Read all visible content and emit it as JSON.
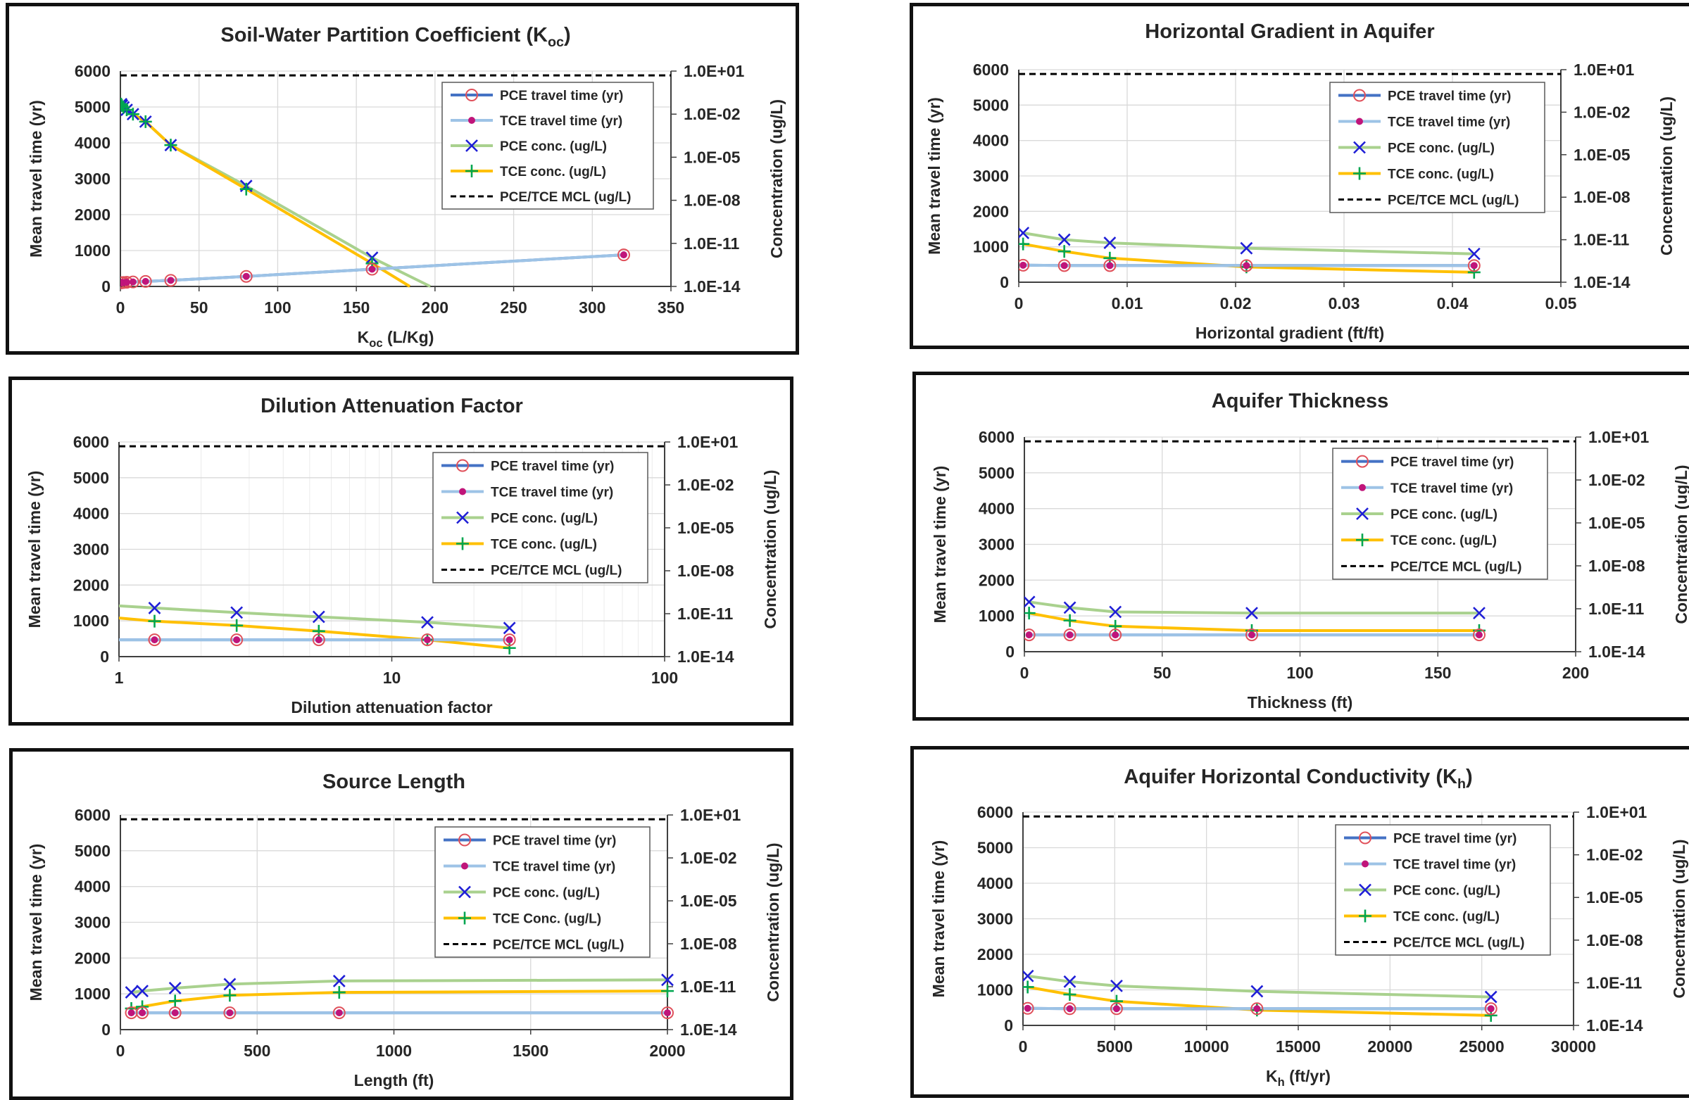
{
  "legend_styles": [
    {
      "color": "#4472C4",
      "marker": "circle-open",
      "marker_color": "#E0505A"
    },
    {
      "color": "#9DC3E6",
      "marker": "dot",
      "marker_color": "#C0157A"
    },
    {
      "color": "#A9D18E",
      "marker": "x",
      "marker_color": "#1F1FD6"
    },
    {
      "color": "#FFC000",
      "marker": "plus",
      "marker_color": "#00A650"
    },
    {
      "color": "#000000",
      "marker": "dash"
    }
  ],
  "chart_data": [
    {
      "type": "line",
      "title": "Soil-Water Partition Coefficient (K",
      "title_sub": "oc",
      "title_tail": ")",
      "xlabel": "K",
      "xlabel_sub": "oc",
      "xlabel_tail": " (L/Kg)",
      "ylabel": "Mean travel time (yr)",
      "y2label": "Concentration (ug/L)",
      "xscale": "linear",
      "xlim": [
        0,
        350
      ],
      "xticks": [
        0,
        50,
        100,
        150,
        200,
        250,
        300,
        350
      ],
      "ylim": [
        0,
        6000
      ],
      "yticks": [
        0,
        1000,
        2000,
        3000,
        4000,
        5000,
        6000
      ],
      "y2scale": "log",
      "y2lim": [
        1e-14,
        10
      ],
      "y2ticks": [
        "1.0E-14",
        "1.0E-11",
        "1.0E-08",
        "1.0E-05",
        "1.0E-02",
        "1.0E+01"
      ],
      "legend_position": "top-right",
      "legend": [
        "PCE travel time (yr)",
        "TCE travel time (yr)",
        "PCE conc. (ug/L)",
        "TCE conc. (ug/L)",
        "PCE/TCE MCL (ug/L)"
      ],
      "series": [
        {
          "name": "PCE travel time (yr)",
          "axis": "left",
          "x": [
            0.5,
            1,
            2,
            4,
            8,
            16,
            32,
            80,
            160,
            320
          ],
          "y": [
            100,
            105,
            110,
            115,
            125,
            140,
            170,
            280,
            480,
            880
          ]
        },
        {
          "name": "TCE travel time (yr)",
          "axis": "left",
          "x": [
            0.5,
            1,
            2,
            4,
            8,
            16,
            32,
            80,
            160,
            320
          ],
          "y": [
            100,
            105,
            110,
            115,
            125,
            140,
            170,
            280,
            480,
            880
          ]
        },
        {
          "name": "PCE conc. (ug/L)",
          "axis": "right",
          "x": [
            0.5,
            1,
            2,
            4,
            8,
            16,
            32,
            80,
            160,
            197
          ],
          "y": [
            0.05,
            0.04,
            0.03,
            0.02,
            0.01,
            0.003,
            7e-05,
            1e-07,
            1e-12,
            1e-14
          ]
        },
        {
          "name": "TCE conc. (ug/L)",
          "axis": "right",
          "x": [
            0.5,
            1,
            2,
            4,
            8,
            16,
            32,
            80,
            160,
            184
          ],
          "y": [
            0.05,
            0.04,
            0.03,
            0.02,
            0.01,
            0.003,
            7e-05,
            6e-08,
            4e-13,
            1e-14
          ]
        },
        {
          "name": "PCE/TCE MCL (ug/L)",
          "axis": "right",
          "x": [
            0,
            350
          ],
          "y": [
            5,
            5
          ]
        }
      ]
    },
    {
      "type": "line",
      "title": "Horizontal Gradient in Aquifer",
      "title_sub": "",
      "title_tail": "",
      "xlabel": "Horizontal gradient (ft/ft)",
      "xlabel_sub": "",
      "xlabel_tail": "",
      "ylabel": "Mean travel time (yr)",
      "y2label": "Concentration (ug/L)",
      "xscale": "linear",
      "xlim": [
        0,
        0.05
      ],
      "xticks": [
        0,
        0.01,
        0.02,
        0.03,
        0.04,
        0.05
      ],
      "ylim": [
        0,
        6000
      ],
      "yticks": [
        0,
        1000,
        2000,
        3000,
        4000,
        5000,
        6000
      ],
      "y2scale": "log",
      "y2lim": [
        1e-14,
        10
      ],
      "y2ticks": [
        "1.0E-14",
        "1.0E-11",
        "1.0E-08",
        "1.0E-05",
        "1.0E-02",
        "1.0E+01"
      ],
      "legend_position": "top-right",
      "legend": [
        "PCE travel time (yr)",
        "TCE travel time (yr)",
        "PCE conc. (ug/L)",
        "TCE conc. (ug/L)",
        "PCE/TCE MCL (ug/L)"
      ],
      "series": [
        {
          "name": "PCE travel time (yr)",
          "axis": "left",
          "x": [
            0.0004,
            0.0042,
            0.0084,
            0.021,
            0.042
          ],
          "y": [
            480,
            470,
            470,
            470,
            470
          ]
        },
        {
          "name": "TCE travel time (yr)",
          "axis": "left",
          "x": [
            0.0004,
            0.0042,
            0.0084,
            0.021,
            0.042
          ],
          "y": [
            480,
            470,
            470,
            470,
            470
          ]
        },
        {
          "name": "PCE conc. (ug/L)",
          "axis": "right",
          "x": [
            0.0004,
            0.0042,
            0.0084,
            0.021,
            0.042
          ],
          "y": [
            3e-11,
            1e-11,
            6e-12,
            2.5e-12,
            1e-12
          ]
        },
        {
          "name": "TCE conc. (ug/L)",
          "axis": "right",
          "x": [
            0.0004,
            0.0042,
            0.0084,
            0.021,
            0.042
          ],
          "y": [
            5e-12,
            1.5e-12,
            5e-13,
            1.2e-13,
            5e-14
          ]
        },
        {
          "name": "PCE/TCE MCL (ug/L)",
          "axis": "right",
          "x": [
            0,
            0.05
          ],
          "y": [
            5,
            5
          ]
        }
      ]
    },
    {
      "type": "line",
      "title": "Dilution Attenuation Factor",
      "title_sub": "",
      "title_tail": "",
      "xlabel": "Dilution attenuation factor",
      "xlabel_sub": "",
      "xlabel_tail": "",
      "ylabel": "Mean travel time (yr)",
      "y2label": "Concentration (ug/L)",
      "xscale": "log",
      "xlim": [
        1,
        100
      ],
      "xticks": [
        1,
        10,
        100
      ],
      "ylim": [
        0,
        6000
      ],
      "yticks": [
        0,
        1000,
        2000,
        3000,
        4000,
        5000,
        6000
      ],
      "y2scale": "log",
      "y2lim": [
        1e-14,
        10
      ],
      "y2ticks": [
        "1.0E-14",
        "1.0E-11",
        "1.0E-08",
        "1.0E-05",
        "1.0E-02",
        "1.0E+01"
      ],
      "legend_position": "top-right",
      "legend": [
        "PCE travel time (yr)",
        "TCE travel time (yr)",
        "PCE conc. (ug/L)",
        "TCE conc. (ug/L)",
        "PCE/TCE MCL (ug/L)"
      ],
      "series": [
        {
          "name": "PCE travel time (yr)",
          "axis": "left",
          "x": [
            1,
            1.35,
            2.7,
            5.4,
            13.5,
            27
          ],
          "y": [
            470,
            470,
            470,
            470,
            470,
            470
          ]
        },
        {
          "name": "TCE travel time (yr)",
          "axis": "left",
          "x": [
            1,
            1.35,
            2.7,
            5.4,
            13.5,
            27
          ],
          "y": [
            470,
            470,
            470,
            470,
            470,
            470
          ]
        },
        {
          "name": "PCE conc. (ug/L)",
          "axis": "right",
          "x": [
            1,
            1.35,
            2.7,
            5.4,
            13.5,
            27
          ],
          "y": [
            3.5e-11,
            2.5e-11,
            1.2e-11,
            6e-12,
            2.5e-12,
            1e-12
          ]
        },
        {
          "name": "TCE conc. (ug/L)",
          "axis": "right",
          "x": [
            1,
            1.35,
            2.7,
            5.4,
            13.5,
            27
          ],
          "y": [
            5e-12,
            3e-12,
            1.5e-12,
            6e-13,
            1.5e-13,
            4e-14
          ]
        },
        {
          "name": "PCE/TCE MCL (ug/L)",
          "axis": "right",
          "x": [
            1,
            100
          ],
          "y": [
            5,
            5
          ]
        }
      ]
    },
    {
      "type": "line",
      "title": "Aquifer Thickness",
      "title_sub": "",
      "title_tail": "",
      "xlabel": "Thickness (ft)",
      "xlabel_sub": "",
      "xlabel_tail": "",
      "ylabel": "Mean travel time (yr)",
      "y2label": "Concentration (ug/L)",
      "xscale": "linear",
      "xlim": [
        0,
        200
      ],
      "xticks": [
        0,
        50,
        100,
        150,
        200
      ],
      "ylim": [
        0,
        6000
      ],
      "yticks": [
        0,
        1000,
        2000,
        3000,
        4000,
        5000,
        6000
      ],
      "y2scale": "log",
      "y2lim": [
        1e-14,
        10
      ],
      "y2ticks": [
        "1.0E-14",
        "1.0E-11",
        "1.0E-08",
        "1.0E-05",
        "1.0E-02",
        "1.0E+01"
      ],
      "legend_position": "top-right",
      "legend": [
        "PCE travel time (yr)",
        "TCE travel time (yr)",
        "PCE conc. (ug/L)",
        "TCE conc. (ug/L)",
        "PCE/TCE MCL (ug/L)"
      ],
      "series": [
        {
          "name": "PCE travel time (yr)",
          "axis": "left",
          "x": [
            1.7,
            16.5,
            33,
            82.5,
            165
          ],
          "y": [
            470,
            470,
            470,
            470,
            470
          ]
        },
        {
          "name": "TCE travel time (yr)",
          "axis": "left",
          "x": [
            1.7,
            16.5,
            33,
            82.5,
            165
          ],
          "y": [
            470,
            470,
            470,
            470,
            470
          ]
        },
        {
          "name": "PCE conc. (ug/L)",
          "axis": "right",
          "x": [
            1.7,
            16.5,
            33,
            82.5,
            165
          ],
          "y": [
            3e-11,
            1.2e-11,
            6e-12,
            5e-12,
            5e-12
          ]
        },
        {
          "name": "TCE conc. (ug/L)",
          "axis": "right",
          "x": [
            1.7,
            16.5,
            33,
            82.5,
            165
          ],
          "y": [
            5e-12,
            1.5e-12,
            6e-13,
            3e-13,
            3e-13
          ]
        },
        {
          "name": "PCE/TCE MCL (ug/L)",
          "axis": "right",
          "x": [
            0,
            200
          ],
          "y": [
            5,
            5
          ]
        }
      ]
    },
    {
      "type": "line",
      "title": "Source Length",
      "title_sub": "",
      "title_tail": "",
      "xlabel": "Length (ft)",
      "xlabel_sub": "",
      "xlabel_tail": "",
      "ylabel": "Mean travel time (yr)",
      "y2label": "Concentration (ug/L)",
      "xscale": "linear",
      "xlim": [
        0,
        2000
      ],
      "xticks": [
        0,
        500,
        1000,
        1500,
        2000
      ],
      "ylim": [
        0,
        6000
      ],
      "yticks": [
        0,
        1000,
        2000,
        3000,
        4000,
        5000,
        6000
      ],
      "y2scale": "log",
      "y2lim": [
        1e-14,
        10
      ],
      "y2ticks": [
        "1.0E-14",
        "1.0E-11",
        "1.0E-08",
        "1.0E-05",
        "1.0E-02",
        "1.0E+01"
      ],
      "legend_position": "top-right",
      "legend": [
        "PCE travel time (yr)",
        "TCE travel time (yr)",
        "PCE conc. (ug/L)",
        "TCE Conc. (ug/L)",
        "PCE/TCE MCL (ug/L)"
      ],
      "series": [
        {
          "name": "PCE travel time (yr)",
          "axis": "left",
          "x": [
            40,
            80,
            200,
            400,
            800,
            2000
          ],
          "y": [
            470,
            470,
            470,
            470,
            470,
            470
          ]
        },
        {
          "name": "TCE travel time (yr)",
          "axis": "left",
          "x": [
            40,
            80,
            200,
            400,
            800,
            2000
          ],
          "y": [
            470,
            470,
            470,
            470,
            470,
            470
          ]
        },
        {
          "name": "PCE conc. (ug/L)",
          "axis": "right",
          "x": [
            40,
            80,
            200,
            400,
            800,
            2000
          ],
          "y": [
            4e-12,
            5e-12,
            8e-12,
            1.5e-11,
            2.5e-11,
            3e-11
          ]
        },
        {
          "name": "TCE Conc. (ug/L)",
          "axis": "right",
          "x": [
            40,
            80,
            200,
            400,
            800,
            2000
          ],
          "y": [
            3e-13,
            4e-13,
            1e-12,
            2.5e-12,
            4e-12,
            5e-12
          ]
        },
        {
          "name": "PCE/TCE MCL (ug/L)",
          "axis": "right",
          "x": [
            0,
            2000
          ],
          "y": [
            5,
            5
          ]
        }
      ]
    },
    {
      "type": "line",
      "title": "Aquifer Horizontal Conductivity (K",
      "title_sub": "h",
      "title_tail": ")",
      "xlabel": "K",
      "xlabel_sub": "h",
      "xlabel_tail": " (ft/yr)",
      "ylabel": "Mean travel time (yr)",
      "y2label": "Concentration (ug/L)",
      "xscale": "linear",
      "xlim": [
        0,
        30000
      ],
      "xticks": [
        0,
        5000,
        10000,
        15000,
        20000,
        25000,
        30000
      ],
      "ylim": [
        0,
        6000
      ],
      "yticks": [
        0,
        1000,
        2000,
        3000,
        4000,
        5000,
        6000
      ],
      "y2scale": "log",
      "y2lim": [
        1e-14,
        10
      ],
      "y2ticks": [
        "1.0E-14",
        "1.0E-11",
        "1.0E-08",
        "1.0E-05",
        "1.0E-02",
        "1.0E+01"
      ],
      "legend_position": "top-right",
      "legend": [
        "PCE travel time (yr)",
        "TCE travel time (yr)",
        "PCE conc. (ug/L)",
        "TCE conc. (ug/L)",
        "PCE/TCE MCL (ug/L)"
      ],
      "series": [
        {
          "name": "PCE travel time (yr)",
          "axis": "left",
          "x": [
            255,
            2550,
            5100,
            12750,
            25500
          ],
          "y": [
            480,
            470,
            470,
            470,
            470
          ]
        },
        {
          "name": "TCE travel time (yr)",
          "axis": "left",
          "x": [
            255,
            2550,
            5100,
            12750,
            25500
          ],
          "y": [
            480,
            470,
            470,
            470,
            470
          ]
        },
        {
          "name": "PCE conc. (ug/L)",
          "axis": "right",
          "x": [
            255,
            2550,
            5100,
            12750,
            25500
          ],
          "y": [
            3e-11,
            1.2e-11,
            6e-12,
            2.5e-12,
            1e-12
          ]
        },
        {
          "name": "TCE conc. (ug/L)",
          "axis": "right",
          "x": [
            255,
            2550,
            5100,
            12750,
            25500
          ],
          "y": [
            5e-12,
            1.5e-12,
            5e-13,
            1.2e-13,
            5e-14
          ]
        },
        {
          "name": "PCE/TCE MCL (ug/L)",
          "axis": "right",
          "x": [
            0,
            30000
          ],
          "y": [
            5,
            5
          ]
        }
      ]
    }
  ]
}
